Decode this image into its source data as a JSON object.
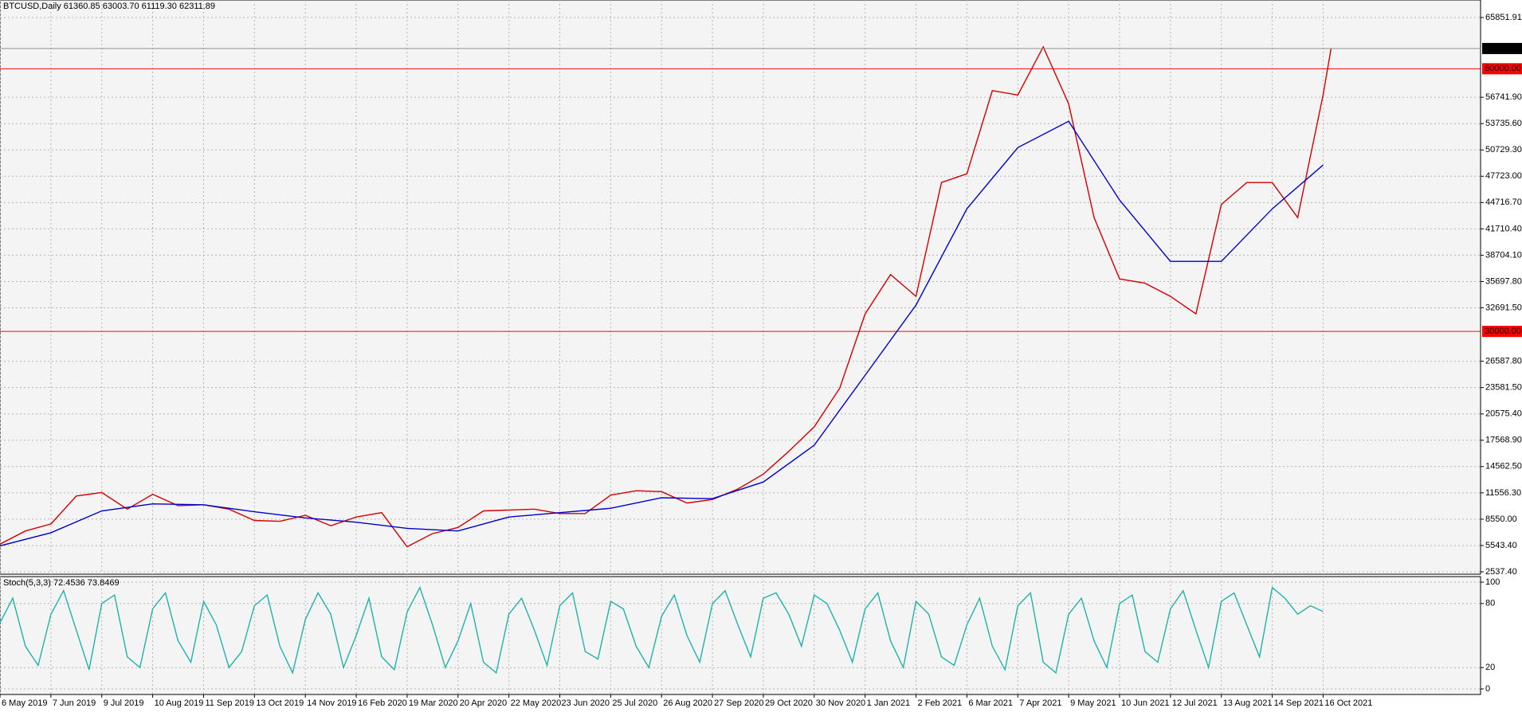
{
  "chart_data": [
    {
      "type": "line",
      "title": "BTCUSD,Daily  61360.85 63003.70 61119.30 62311.89",
      "xlim": [
        0,
        931
      ],
      "ylim": [
        2264,
        67853
      ],
      "yticks": [
        {
          "value": 2537.4,
          "label": "2537.40"
        },
        {
          "value": 5543.4,
          "label": "5543.40"
        },
        {
          "value": 8550,
          "label": "8550.00"
        },
        {
          "value": 11556.3,
          "label": "11556.30"
        },
        {
          "value": 14562.5,
          "label": "14562.50"
        },
        {
          "value": 17568.9,
          "label": "17568.90"
        },
        {
          "value": 20575.4,
          "label": "20575.40"
        },
        {
          "value": 23581.5,
          "label": "23581.50"
        },
        {
          "value": 26587.8,
          "label": "26587.80"
        },
        {
          "value": 32691.5,
          "label": "32691.50"
        },
        {
          "value": 35697.8,
          "label": "35697.80"
        },
        {
          "value": 38704.1,
          "label": "38704.10"
        },
        {
          "value": 41710.4,
          "label": "41710.40"
        },
        {
          "value": 44716.7,
          "label": "44716.70"
        },
        {
          "value": 47723,
          "label": "47723.00"
        },
        {
          "value": 50729.3,
          "label": "50729.30"
        },
        {
          "value": 53735.6,
          "label": "53735.60"
        },
        {
          "value": 56741.9,
          "label": "56741.90"
        },
        {
          "value": 65851.91,
          "label": "65851.91"
        }
      ],
      "grid": true,
      "hlines": [
        {
          "value": 60000,
          "label": "60000.00",
          "color": "#ff0000"
        },
        {
          "value": 30000,
          "label": "30000.00",
          "color": "#ff0000"
        }
      ],
      "last_price": {
        "value": 62311.89,
        "label": "62311.89"
      },
      "series": [
        {
          "color": "#d40000",
          "x": [
            0,
            16,
            32,
            48,
            64,
            80,
            96,
            112,
            128,
            144,
            160,
            176,
            192,
            208,
            224,
            240,
            256,
            272,
            288,
            304,
            320,
            336,
            352,
            368,
            384,
            400,
            416,
            432,
            448,
            464,
            480,
            496,
            512,
            528,
            544,
            560,
            576,
            592,
            608,
            624,
            640,
            656,
            672,
            688,
            704,
            720,
            736,
            752,
            768,
            784,
            800,
            816,
            832,
            837
          ],
          "values": [
            5700,
            7200,
            8000,
            11200,
            11600,
            9700,
            11400,
            10100,
            10200,
            9700,
            8400,
            8300,
            9000,
            7800,
            8800,
            9300,
            5400,
            6900,
            7600,
            9500,
            9600,
            9700,
            9200,
            9200,
            11300,
            11800,
            11700,
            10400,
            10800,
            12000,
            13700,
            16300,
            19100,
            23500,
            32000,
            36500,
            34000,
            47000,
            48000,
            57500,
            57000,
            62500,
            56000,
            43000,
            36000,
            35500,
            34000,
            32000,
            44500,
            47000,
            47000,
            43000,
            57000,
            62311.89
          ]
        },
        {
          "color": "#0000cd",
          "x": [
            0,
            32,
            64,
            96,
            128,
            160,
            192,
            224,
            256,
            288,
            320,
            352,
            384,
            416,
            448,
            480,
            512,
            544,
            576,
            608,
            640,
            672,
            704,
            736,
            768,
            800,
            832
          ],
          "values": [
            5500,
            7000,
            9500,
            10300,
            10200,
            9400,
            8700,
            8200,
            7500,
            7200,
            8800,
            9300,
            9800,
            11000,
            10900,
            12800,
            17000,
            25000,
            33000,
            44000,
            51000,
            54000,
            45000,
            38000,
            38000,
            44000,
            49000
          ]
        }
      ]
    },
    {
      "type": "line",
      "title": "Stoch(5,3,3) 72.4536 73.8469",
      "xlim": [
        0,
        931
      ],
      "ylim": [
        -5.2,
        105.2
      ],
      "yticks": [
        0,
        20,
        80,
        100
      ],
      "grid": true,
      "xticks": [
        {
          "value": 0,
          "label": "6 May 2019"
        },
        {
          "value": 32,
          "label": "7 Jun 2019"
        },
        {
          "value": 64,
          "label": "9 Jul 2019"
        },
        {
          "value": 96,
          "label": "10 Aug 2019"
        },
        {
          "value": 128,
          "label": "11 Sep 2019"
        },
        {
          "value": 160,
          "label": "13 Oct 2019"
        },
        {
          "value": 192,
          "label": "14 Nov 2019"
        },
        {
          "value": 224,
          "label": "16 Feb 2020"
        },
        {
          "value": 256,
          "label": "19 Mar 2020"
        },
        {
          "value": 288,
          "label": "20 Apr 2020"
        },
        {
          "value": 320,
          "label": "22 May 2020"
        },
        {
          "value": 352,
          "label": "23 Jun 2020"
        },
        {
          "value": 384,
          "label": "25 Jul 2020"
        },
        {
          "value": 416,
          "label": "26 Aug 2020"
        },
        {
          "value": 448,
          "label": "27 Sep 2020"
        },
        {
          "value": 480,
          "label": "29 Oct 2020"
        },
        {
          "value": 512,
          "label": "30 Nov 2020"
        },
        {
          "value": 544,
          "label": "1 Jan 2021"
        },
        {
          "value": 576,
          "label": "2 Feb 2021"
        },
        {
          "value": 608,
          "label": "6 Mar 2021"
        },
        {
          "value": 640,
          "label": "7 Apr 2021"
        },
        {
          "value": 672,
          "label": "9 May 2021"
        },
        {
          "value": 704,
          "label": "10 Jun 2021"
        },
        {
          "value": 736,
          "label": "12 Jul 2021"
        },
        {
          "value": 768,
          "label": "13 Aug 2021"
        },
        {
          "value": 800,
          "label": "14 Sep 2021"
        },
        {
          "value": 832,
          "label": "16 Oct 2021"
        }
      ],
      "series": [
        {
          "color": "#20b2aa",
          "x": [
            0,
            8,
            16,
            24,
            32,
            40,
            48,
            56,
            64,
            72,
            80,
            88,
            96,
            104,
            112,
            120,
            128,
            136,
            144,
            152,
            160,
            168,
            176,
            184,
            192,
            200,
            208,
            216,
            224,
            232,
            240,
            248,
            256,
            264,
            272,
            280,
            288,
            296,
            304,
            312,
            320,
            328,
            336,
            344,
            352,
            360,
            368,
            376,
            384,
            392,
            400,
            408,
            416,
            424,
            432,
            440,
            448,
            456,
            464,
            472,
            480,
            488,
            496,
            504,
            512,
            520,
            528,
            536,
            544,
            552,
            560,
            568,
            576,
            584,
            592,
            600,
            608,
            616,
            624,
            632,
            640,
            648,
            656,
            664,
            672,
            680,
            688,
            696,
            704,
            712,
            720,
            728,
            736,
            744,
            752,
            760,
            768,
            776,
            784,
            792,
            800,
            808,
            816,
            824,
            832
          ],
          "values": [
            62,
            85,
            40,
            22,
            70,
            92,
            55,
            18,
            80,
            88,
            30,
            20,
            75,
            90,
            45,
            25,
            82,
            60,
            20,
            35,
            78,
            88,
            40,
            15,
            65,
            90,
            70,
            20,
            50,
            85,
            30,
            18,
            72,
            95,
            60,
            20,
            45,
            80,
            25,
            15,
            70,
            85,
            55,
            22,
            78,
            90,
            35,
            28,
            82,
            75,
            40,
            20,
            68,
            88,
            50,
            25,
            80,
            92,
            60,
            30,
            85,
            90,
            70,
            40,
            88,
            80,
            55,
            25,
            75,
            90,
            45,
            20,
            82,
            70,
            30,
            22,
            60,
            85,
            40,
            18,
            78,
            90,
            25,
            15,
            70,
            85,
            45,
            20,
            80,
            88,
            35,
            25,
            75,
            92,
            55,
            20,
            82,
            90,
            60,
            30,
            95,
            85,
            70,
            78,
            72.4536
          ]
        }
      ]
    }
  ]
}
